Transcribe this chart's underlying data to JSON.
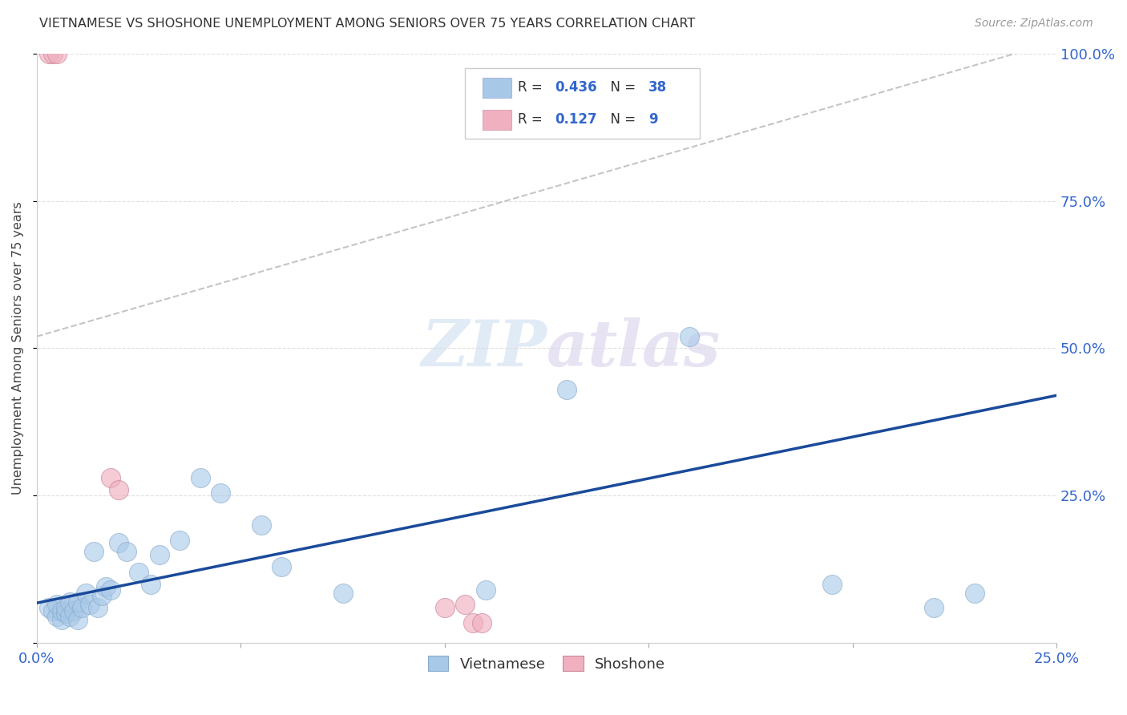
{
  "title": "VIETNAMESE VS SHOSHONE UNEMPLOYMENT AMONG SENIORS OVER 75 YEARS CORRELATION CHART",
  "source": "Source: ZipAtlas.com",
  "ylabel": "Unemployment Among Seniors over 75 years",
  "xlim": [
    0,
    0.25
  ],
  "ylim": [
    0,
    1.0
  ],
  "xticks": [
    0.0,
    0.05,
    0.1,
    0.15,
    0.2,
    0.25
  ],
  "yticks": [
    0.0,
    0.25,
    0.5,
    0.75,
    1.0
  ],
  "xtick_labels": [
    "0.0%",
    "",
    "",
    "",
    "",
    "25.0%"
  ],
  "ytick_labels_right": [
    "",
    "25.0%",
    "50.0%",
    "75.0%",
    "100.0%"
  ],
  "background_color": "#ffffff",
  "grid_color": "#dddddd",
  "watermark_zip": "ZIP",
  "watermark_atlas": "atlas",
  "legend_R_viet": "0.436",
  "legend_N_viet": "38",
  "legend_R_sho": "0.127",
  "legend_N_sho": "9",
  "viet_color": "#a8c8e8",
  "sho_color": "#f0b0c0",
  "viet_line_color": "#1a4a9a",
  "sho_line_color": "#cccccc",
  "viet_scatter_x": [
    0.003,
    0.004,
    0.005,
    0.005,
    0.006,
    0.006,
    0.007,
    0.007,
    0.008,
    0.008,
    0.009,
    0.01,
    0.01,
    0.011,
    0.012,
    0.013,
    0.014,
    0.015,
    0.016,
    0.017,
    0.018,
    0.02,
    0.022,
    0.025,
    0.028,
    0.03,
    0.035,
    0.04,
    0.045,
    0.055,
    0.06,
    0.075,
    0.11,
    0.13,
    0.16,
    0.195,
    0.22,
    0.23
  ],
  "viet_scatter_y": [
    0.06,
    0.055,
    0.045,
    0.065,
    0.04,
    0.055,
    0.05,
    0.06,
    0.045,
    0.07,
    0.055,
    0.04,
    0.07,
    0.06,
    0.085,
    0.065,
    0.155,
    0.06,
    0.08,
    0.095,
    0.09,
    0.17,
    0.155,
    0.12,
    0.1,
    0.15,
    0.175,
    0.28,
    0.255,
    0.2,
    0.13,
    0.085,
    0.09,
    0.43,
    0.52,
    0.1,
    0.06,
    0.085
  ],
  "sho_scatter_x": [
    0.003,
    0.004,
    0.005,
    0.018,
    0.02,
    0.1,
    0.105,
    0.107,
    0.109
  ],
  "sho_scatter_y": [
    1.0,
    1.0,
    1.0,
    0.28,
    0.26,
    0.06,
    0.065,
    0.035,
    0.035
  ],
  "viet_trendline_x": [
    0.0,
    0.25
  ],
  "viet_trendline_y": [
    0.068,
    0.42
  ],
  "sho_trendline_x": [
    0.0,
    0.25
  ],
  "sho_trendline_y": [
    0.52,
    1.02
  ]
}
